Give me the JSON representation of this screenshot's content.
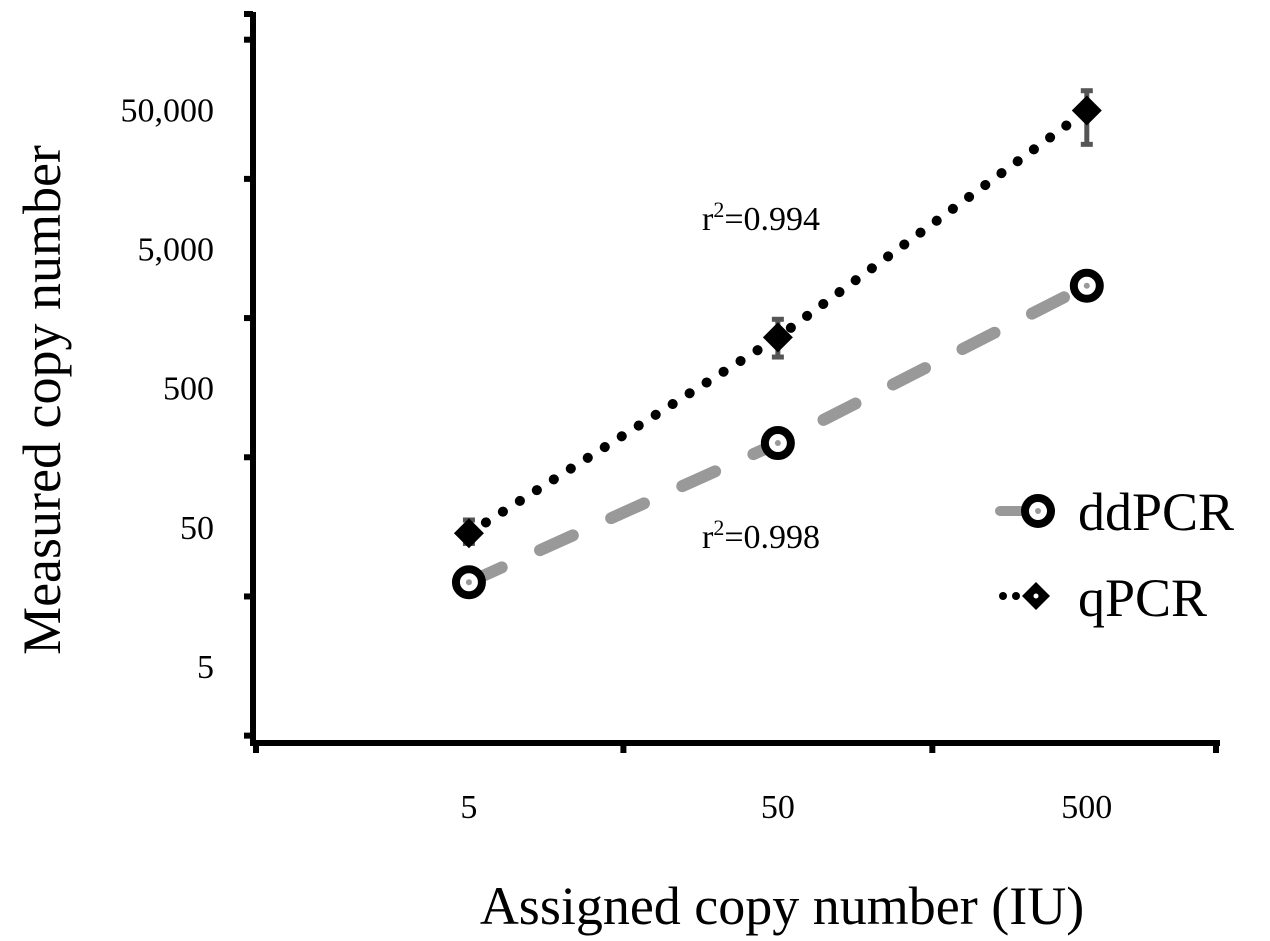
{
  "chart_data": {
    "type": "line",
    "title": "",
    "xlabel": "Assigned copy number (IU)",
    "ylabel": "Measured copy number",
    "x_scale": "log",
    "y_scale": "log",
    "x_ticks": [
      5,
      50,
      500
    ],
    "x_tick_labels": [
      "5",
      "50",
      "500"
    ],
    "y_ticks": [
      5,
      50,
      500,
      5000,
      50000
    ],
    "y_tick_labels": [
      "5",
      "50",
      "500",
      "5,000",
      "50,000"
    ],
    "xlim": [
      1.0,
      1300
    ],
    "ylim": [
      1.4,
      250000
    ],
    "grid": false,
    "legend_position": "right",
    "series": [
      {
        "name": "ddPCR",
        "x": [
          5,
          50,
          500
        ],
        "y": [
          20,
          200,
          2700
        ],
        "line_style": "dashed",
        "line_color": "#999999",
        "marker": "circle",
        "fit_label": "r²=0.998"
      },
      {
        "name": "qPCR",
        "x": [
          5,
          50,
          500
        ],
        "y": [
          45,
          1150,
          49000
        ],
        "y_err_low": [
          38,
          830,
          28000
        ],
        "y_err_high": [
          56,
          1550,
          68000
        ],
        "line_style": "dotted",
        "line_color": "#000000",
        "marker": "diamond",
        "fit_label": "r²=0.994"
      }
    ],
    "annotations": [
      {
        "base": "r",
        "sup": "2",
        "rest": "=0.994",
        "series": "qPCR"
      },
      {
        "base": "r",
        "sup": "2",
        "rest": "=0.998",
        "series": "ddPCR"
      }
    ]
  }
}
